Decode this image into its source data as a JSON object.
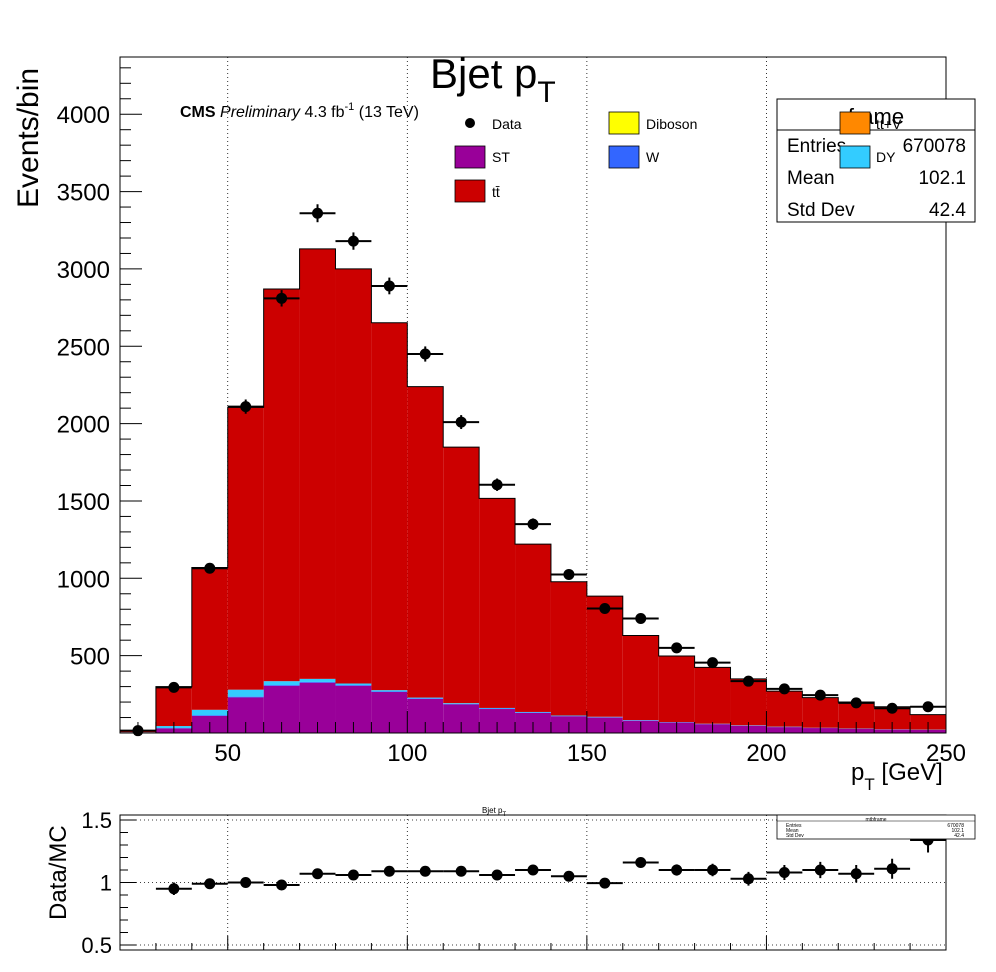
{
  "main": {
    "title": "Bjet p",
    "title_sub": "T",
    "ylabel": "Events/bin",
    "xlabel": "p",
    "xlabel_sub": "T",
    "xlabel_unit": " [GeV]",
    "cms_label": "CMS",
    "cms_prelim": "Preliminary",
    "lumi_value": "4.3 fb",
    "lumi_sup": "-1",
    "lumi_energy": " (13 TeV)"
  },
  "legend": [
    {
      "label": "Data",
      "type": "marker",
      "color": "#000000"
    },
    {
      "label": "Diboson",
      "type": "box",
      "color": "#ffff00"
    },
    {
      "label": "ST",
      "type": "box",
      "color": "#990099"
    },
    {
      "label": "W",
      "type": "box",
      "color": "#3366ff"
    },
    {
      "label": "tt̄",
      "type": "box",
      "color": "#cc0000"
    },
    {
      "label": "tt+V",
      "type": "box",
      "color": "#ff8800"
    },
    {
      "label": "DY",
      "type": "box",
      "color": "#33ccff"
    }
  ],
  "stats": {
    "title": "frame",
    "rows": [
      {
        "label": "Entries",
        "value": "670078"
      },
      {
        "label": "Mean",
        "value": "102.1"
      },
      {
        "label": "Std Dev",
        "value": "42.4"
      }
    ]
  },
  "ratio": {
    "title": "Bjet p",
    "title_sub": "T",
    "ylabel": "Data/MC",
    "stats_title": "mtbframe",
    "stats_rows": [
      {
        "label": "Entries",
        "value": "670078"
      },
      {
        "label": "Mean",
        "value": "102.1"
      },
      {
        "label": "Std Dev",
        "value": "42.4"
      }
    ]
  },
  "chart_data": [
    {
      "type": "bar",
      "stacked": true,
      "title": "Bjet pT",
      "xlabel": "pT [GeV]",
      "ylabel": "Events/bin",
      "xlim": [
        20,
        250
      ],
      "ylim": [
        0,
        4370
      ],
      "grid": "vertical",
      "bin_edges": [
        20,
        30,
        40,
        50,
        60,
        70,
        80,
        90,
        100,
        110,
        120,
        130,
        140,
        150,
        160,
        170,
        180,
        190,
        200,
        210,
        220,
        230,
        240,
        250
      ],
      "x_ticks": [
        50,
        100,
        150,
        200,
        250
      ],
      "y_ticks": [
        500,
        1000,
        1500,
        2000,
        2500,
        3000,
        3500,
        4000
      ],
      "series": [
        {
          "name": "ST",
          "color": "#990099",
          "values": [
            3,
            30,
            110,
            230,
            305,
            325,
            305,
            265,
            220,
            185,
            155,
            130,
            108,
            100,
            80,
            68,
            57,
            47,
            38,
            32,
            27,
            22,
            20
          ]
        },
        {
          "name": "W",
          "color": "#3366ff",
          "values": [
            0,
            2,
            5,
            5,
            5,
            5,
            5,
            4,
            4,
            3,
            3,
            3,
            2,
            2,
            2,
            1,
            1,
            1,
            1,
            1,
            1,
            1,
            1
          ]
        },
        {
          "name": "DY",
          "color": "#33ccff",
          "values": [
            2,
            13,
            35,
            45,
            25,
            20,
            10,
            8,
            5,
            5,
            4,
            3,
            3,
            3,
            2,
            2,
            2,
            2,
            2,
            1,
            1,
            1,
            1
          ]
        },
        {
          "name": "tt̄",
          "color": "#cc0000",
          "values": [
            10,
            255,
            920,
            1825,
            2535,
            2780,
            2680,
            2375,
            2010,
            1655,
            1355,
            1085,
            865,
            780,
            546,
            427,
            364,
            300,
            230,
            195,
            171,
            146,
            97
          ]
        }
      ],
      "data": {
        "name": "Data",
        "x": [
          25,
          35,
          45,
          55,
          65,
          75,
          85,
          95,
          105,
          115,
          125,
          135,
          145,
          155,
          165,
          175,
          185,
          195,
          205,
          215,
          225,
          235,
          245
        ],
        "y": [
          15,
          295,
          1065,
          2110,
          2810,
          3360,
          3180,
          2890,
          2450,
          2010,
          1605,
          1350,
          1025,
          805,
          740,
          550,
          455,
          335,
          285,
          245,
          195,
          160,
          170
        ],
        "yerr": [
          4,
          17,
          33,
          46,
          53,
          58,
          56,
          54,
          49,
          45,
          40,
          37,
          32,
          28,
          27,
          23,
          21,
          18,
          17,
          16,
          14,
          13,
          13
        ]
      }
    },
    {
      "type": "scatter",
      "title": "Bjet pT",
      "ylabel": "Data/MC",
      "xlim": [
        20,
        250
      ],
      "ylim": [
        0.46,
        1.54
      ],
      "y_ticks": [
        0.5,
        1,
        1.5
      ],
      "y_tick_labels": [
        "0.5",
        "1",
        "1.5"
      ],
      "grid": "both",
      "x": [
        35,
        45,
        55,
        65,
        75,
        85,
        95,
        105,
        115,
        125,
        135,
        145,
        155,
        165,
        175,
        185,
        195,
        205,
        215,
        225,
        235,
        245
      ],
      "y": [
        0.95,
        0.99,
        1.0,
        0.98,
        1.07,
        1.06,
        1.09,
        1.09,
        1.09,
        1.06,
        1.1,
        1.05,
        0.995,
        1.16,
        1.1,
        1.1,
        1.03,
        1.08,
        1.1,
        1.07,
        1.11,
        1.34
      ],
      "yerr": [
        0.05,
        0.03,
        0.025,
        0.02,
        0.02,
        0.02,
        0.02,
        0.02,
        0.025,
        0.025,
        0.03,
        0.03,
        0.035,
        0.04,
        0.045,
        0.05,
        0.055,
        0.06,
        0.065,
        0.07,
        0.08,
        0.1
      ]
    }
  ]
}
